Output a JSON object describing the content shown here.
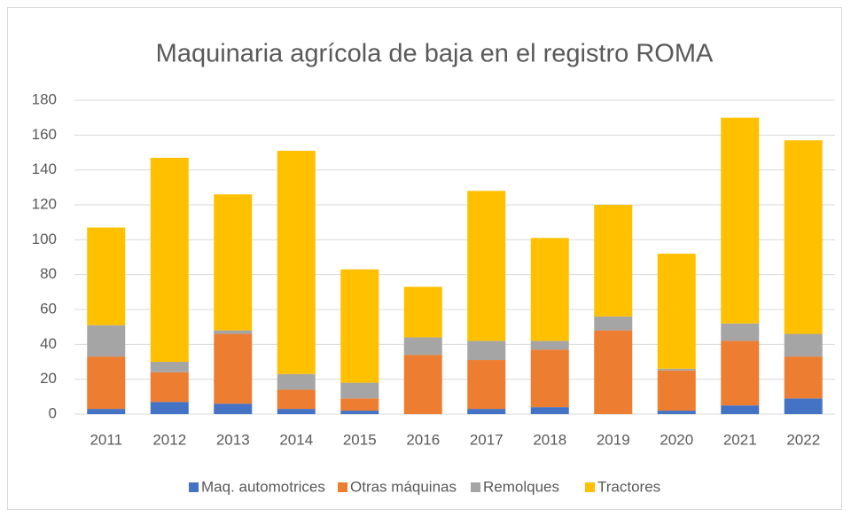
{
  "chart_data": {
    "type": "stacked_bar",
    "title": "Maquinaria agrícola de baja en el registro ROMA",
    "categories": [
      "2011",
      "2012",
      "2013",
      "2014",
      "2015",
      "2016",
      "2017",
      "2018",
      "2019",
      "2020",
      "2021",
      "2022"
    ],
    "series": [
      {
        "name": "Maq. automotrices",
        "color": "#4472c4",
        "values": [
          3,
          7,
          6,
          3,
          2,
          0,
          3,
          4,
          0,
          2,
          5,
          9
        ]
      },
      {
        "name": "Otras máquinas",
        "color": "#ed7d31",
        "values": [
          30,
          17,
          40,
          11,
          7,
          34,
          28,
          33,
          48,
          23,
          37,
          24
        ]
      },
      {
        "name": "Remolques",
        "color": "#a5a5a5",
        "values": [
          18,
          6,
          2,
          9,
          9,
          10,
          11,
          5,
          8,
          1,
          10,
          13
        ]
      },
      {
        "name": "Tractores",
        "color": "#ffc000",
        "values": [
          56,
          117,
          78,
          128,
          65,
          29,
          86,
          59,
          64,
          66,
          118,
          111
        ]
      }
    ],
    "ylim": [
      0,
      180
    ],
    "yticks": [
      0,
      20,
      40,
      60,
      80,
      100,
      120,
      140,
      160,
      180
    ],
    "grid": true,
    "legend": "bottom"
  }
}
